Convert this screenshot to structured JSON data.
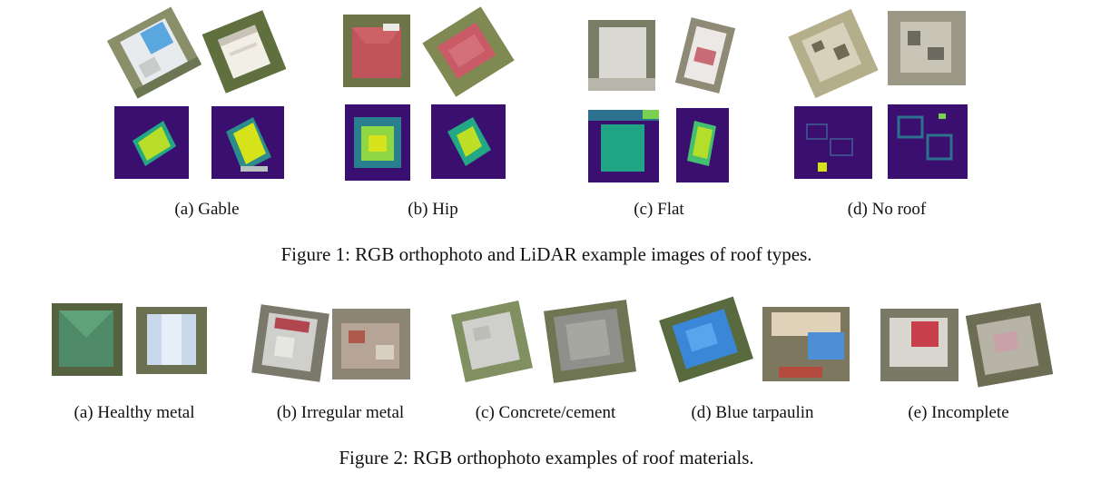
{
  "figure1": {
    "caption": "Figure 1: RGB orthophoto and LiDAR example images of roof types.",
    "panels": [
      {
        "label": "(a) Gable"
      },
      {
        "label": "(b) Hip"
      },
      {
        "label": "(c) Flat"
      },
      {
        "label": "(d) No roof"
      }
    ]
  },
  "figure2": {
    "caption": "Figure 2: RGB orthophoto examples of roof materials.",
    "panels": [
      {
        "label": "(a) Healthy metal"
      },
      {
        "label": "(b) Irregular metal"
      },
      {
        "label": "(c) Concrete/cement"
      },
      {
        "label": "(d) Blue tarpaulin"
      },
      {
        "label": "(e) Incomplete"
      }
    ]
  },
  "colors": {
    "lidar_background": "#3b0f6f",
    "lidar_high": "#d6e21a",
    "lidar_mid": "#21a585"
  }
}
